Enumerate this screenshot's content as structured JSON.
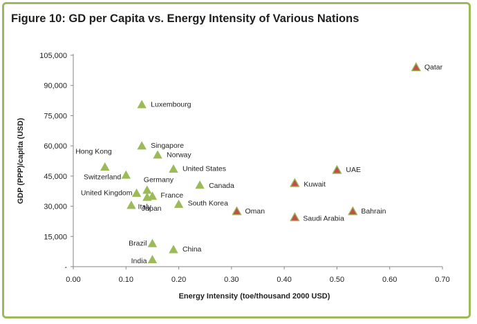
{
  "title": "Figure 10: GD per Capita vs. Energy Intensity of Various Nations",
  "colors": {
    "frame": "#9bbb59",
    "green_marker": "#9bbb59",
    "red_marker": "#c0504d",
    "red_marker_fill": "#c0504d"
  },
  "chart_data": {
    "type": "scatter",
    "title": "Figure 10: GD per Capita vs. Energy Intensity of Various Nations",
    "xlabel": "Energy Intensity (toe/thousand 2000 USD)",
    "ylabel": "GDP (PPP)/capita (USD)",
    "xlim": [
      0,
      0.7
    ],
    "ylim": [
      0,
      105000
    ],
    "x_ticks": [
      "0.00",
      "0.10",
      "0.20",
      "0.30",
      "0.40",
      "0.50",
      "0.60",
      "0.70"
    ],
    "y_ticks": [
      "-",
      "15,000",
      "30,000",
      "45,000",
      "60,000",
      "75,000",
      "90,000",
      "105,000"
    ],
    "grid": false,
    "points": [
      {
        "label": "Qatar",
        "x": 0.65,
        "y": 99000,
        "group": "red"
      },
      {
        "label": "Luxembourg",
        "x": 0.13,
        "y": 80500,
        "group": "green"
      },
      {
        "label": "Singapore",
        "x": 0.13,
        "y": 60000,
        "group": "green"
      },
      {
        "label": "Norway",
        "x": 0.16,
        "y": 55500,
        "group": "green"
      },
      {
        "label": "Hong Kong",
        "x": 0.06,
        "y": 49500,
        "group": "green"
      },
      {
        "label": "United States",
        "x": 0.19,
        "y": 48500,
        "group": "green"
      },
      {
        "label": "UAE",
        "x": 0.5,
        "y": 48000,
        "group": "red"
      },
      {
        "label": "Switzerland",
        "x": 0.1,
        "y": 45500,
        "group": "green"
      },
      {
        "label": "Germany",
        "x": 0.14,
        "y": 38000,
        "group": "green"
      },
      {
        "label": "Canada",
        "x": 0.24,
        "y": 40500,
        "group": "green"
      },
      {
        "label": "Kuwait",
        "x": 0.42,
        "y": 41500,
        "group": "red"
      },
      {
        "label": "United Kingdom",
        "x": 0.12,
        "y": 36500,
        "group": "green"
      },
      {
        "label": "France",
        "x": 0.15,
        "y": 35000,
        "group": "green"
      },
      {
        "label": "Italy",
        "x": 0.14,
        "y": 34500,
        "group": "green"
      },
      {
        "label": "Japan",
        "x": 0.11,
        "y": 30500,
        "group": "green"
      },
      {
        "label": "South Korea",
        "x": 0.2,
        "y": 31000,
        "group": "green"
      },
      {
        "label": "Oman",
        "x": 0.31,
        "y": 27500,
        "group": "red"
      },
      {
        "label": "Bahrain",
        "x": 0.53,
        "y": 27500,
        "group": "red"
      },
      {
        "label": "Saudi Arabia",
        "x": 0.42,
        "y": 24500,
        "group": "red"
      },
      {
        "label": "Brazil",
        "x": 0.15,
        "y": 11500,
        "group": "green"
      },
      {
        "label": "China",
        "x": 0.19,
        "y": 8500,
        "group": "green"
      },
      {
        "label": "India",
        "x": 0.15,
        "y": 3500,
        "group": "green"
      }
    ]
  }
}
